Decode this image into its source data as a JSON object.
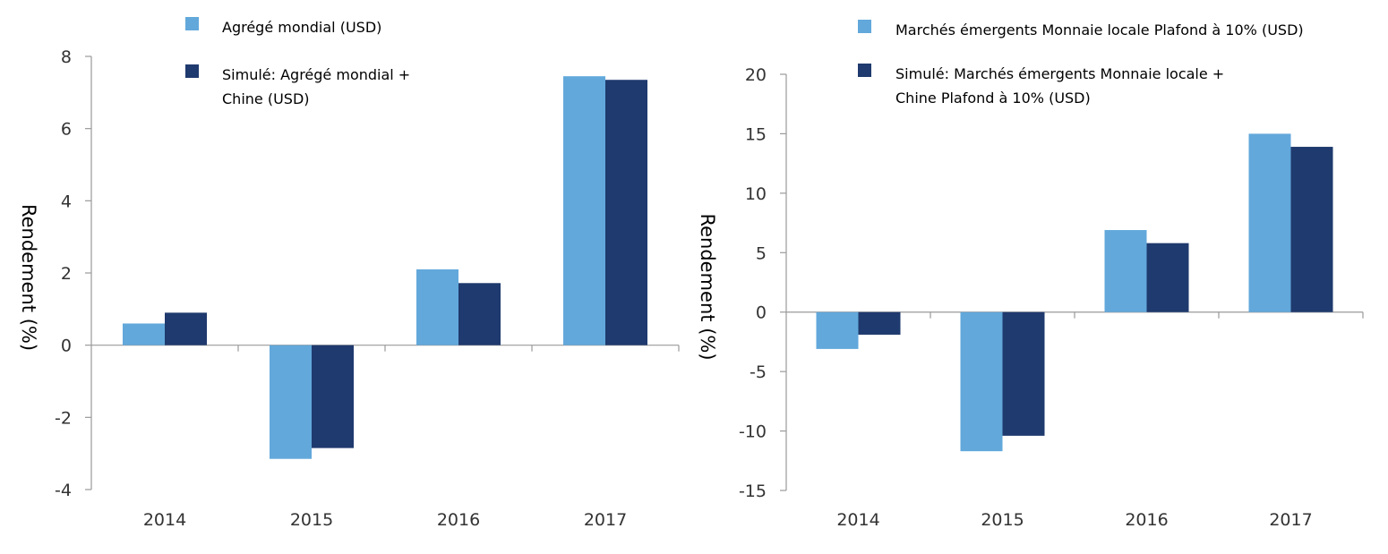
{
  "chart_data": [
    {
      "type": "bar",
      "categories": [
        "2014",
        "2015",
        "2016",
        "2017"
      ],
      "series": [
        {
          "name": "Agrégé mondial (USD)",
          "color": "#62a8db",
          "values": [
            0.6,
            -3.15,
            2.1,
            7.45
          ]
        },
        {
          "name": "Simulé: Agrégé mondial + Chine (USD)",
          "color": "#1f3a6e",
          "values": [
            0.9,
            -2.85,
            1.72,
            7.35
          ]
        }
      ],
      "legend_lines": [
        [
          "Agrégé mondial (USD)"
        ],
        [
          "Simulé: Agrégé mondial +",
          "Chine (USD)"
        ]
      ],
      "legend_position": "top",
      "ylabel": "Rendement (%)",
      "ylim": [
        -4,
        8
      ],
      "yticks": [
        8,
        6,
        4,
        2,
        0,
        -2,
        -4
      ],
      "ytick_labels": [
        "8",
        "6",
        "4",
        "2",
        "0",
        "-2",
        "-4"
      ],
      "grid": false
    },
    {
      "type": "bar",
      "categories": [
        "2014",
        "2015",
        "2016",
        "2017"
      ],
      "series": [
        {
          "name": "Marchés émergents Monnaie locale Plafond à 10% (USD)",
          "color": "#62a8db",
          "values": [
            -3.1,
            -11.7,
            6.9,
            15.0
          ]
        },
        {
          "name": "Simulé: Marchés émergents Monnaie locale + Chine Plafond à 10% (USD)",
          "color": "#1f3a6e",
          "values": [
            -1.9,
            -10.4,
            5.8,
            13.9
          ]
        }
      ],
      "legend_lines": [
        [
          "Marchés émergents Monnaie locale Plafond à 10% (USD)"
        ],
        [
          "Simulé: Marchés émergents Monnaie locale +",
          "Chine Plafond à 10% (USD)"
        ]
      ],
      "legend_position": "top",
      "ylabel": "Rendement (%)",
      "ylim": [
        -15,
        20
      ],
      "yticks": [
        20,
        15,
        10,
        5,
        0,
        -5,
        -10,
        -15
      ],
      "ytick_labels": [
        "20",
        "15",
        "10",
        "5",
        "0",
        "-5",
        "-10",
        "-15"
      ],
      "grid": false
    }
  ]
}
